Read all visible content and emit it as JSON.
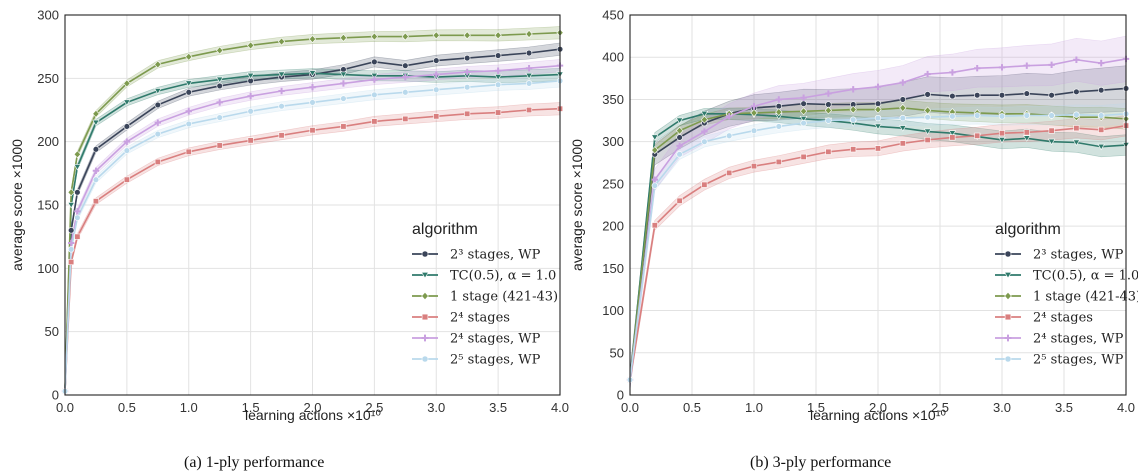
{
  "chart_data": [
    {
      "type": "line",
      "caption": "(a) 1-ply performance",
      "xlabel": "learning actions ×10¹⁰",
      "ylabel": "average score ×1000",
      "xlim": [
        0,
        4.0
      ],
      "ylim": [
        0,
        300
      ],
      "xticks": [
        "0.0",
        "0.5",
        "1.0",
        "1.5",
        "2.0",
        "2.5",
        "3.0",
        "3.5",
        "4.0"
      ],
      "yticks": [
        "0",
        "50",
        "100",
        "150",
        "200",
        "250",
        "300"
      ],
      "grid": true,
      "legend_title": "algorithm",
      "legend_placement": "lower-right",
      "series": [
        {
          "name": "2³ stages, WP",
          "color": "#3a4459",
          "marker": "circle",
          "x": [
            0,
            0.05,
            0.1,
            0.25,
            0.5,
            0.75,
            1.0,
            1.25,
            1.5,
            1.75,
            2.0,
            2.25,
            2.5,
            2.75,
            3.0,
            3.25,
            3.5,
            3.75,
            4.0
          ],
          "y": [
            3,
            130,
            160,
            194,
            212,
            229,
            239,
            244,
            248,
            251,
            253,
            257,
            263,
            260,
            264,
            266,
            268,
            270,
            273
          ]
        },
        {
          "name": "TC(0.5), α = 1.0",
          "color": "#2f7a6b",
          "marker": "triangle-down",
          "x": [
            0,
            0.05,
            0.1,
            0.25,
            0.5,
            0.75,
            1.0,
            1.25,
            1.5,
            1.75,
            2.0,
            2.25,
            2.5,
            2.75,
            3.0,
            3.25,
            3.5,
            3.75,
            4.0
          ],
          "y": [
            3,
            150,
            180,
            215,
            231,
            240,
            246,
            249,
            252,
            253,
            254,
            253,
            252,
            252,
            251,
            252,
            251,
            252,
            253
          ]
        },
        {
          "name": "1 stage (421-43)",
          "color": "#7d9a4e",
          "marker": "diamond",
          "x": [
            0,
            0.05,
            0.1,
            0.25,
            0.5,
            0.75,
            1.0,
            1.25,
            1.5,
            1.75,
            2.0,
            2.25,
            2.5,
            2.75,
            3.0,
            3.25,
            3.5,
            3.75,
            4.0
          ],
          "y": [
            3,
            160,
            190,
            222,
            246,
            261,
            267,
            272,
            276,
            279,
            281,
            282,
            283,
            283,
            284,
            284,
            284,
            285,
            286
          ]
        },
        {
          "name": "2⁴ stages",
          "color": "#d97f7f",
          "marker": "square",
          "x": [
            0,
            0.05,
            0.1,
            0.25,
            0.5,
            0.75,
            1.0,
            1.25,
            1.5,
            1.75,
            2.0,
            2.25,
            2.5,
            2.75,
            3.0,
            3.25,
            3.5,
            3.75,
            4.0
          ],
          "y": [
            3,
            105,
            125,
            153,
            170,
            184,
            192,
            197,
            201,
            205,
            209,
            212,
            216,
            218,
            220,
            222,
            223,
            225,
            226
          ]
        },
        {
          "name": "2⁴ stages, WP",
          "color": "#c9a0e0",
          "marker": "plus",
          "x": [
            0,
            0.05,
            0.1,
            0.25,
            0.5,
            0.75,
            1.0,
            1.25,
            1.5,
            1.75,
            2.0,
            2.25,
            2.5,
            2.75,
            3.0,
            3.25,
            3.5,
            3.75,
            4.0
          ],
          "y": [
            3,
            120,
            145,
            177,
            200,
            215,
            224,
            231,
            236,
            240,
            243,
            246,
            249,
            251,
            253,
            255,
            256,
            258,
            260
          ]
        },
        {
          "name": "2⁵ stages, WP",
          "color": "#b9d9ec",
          "marker": "circle",
          "x": [
            0,
            0.05,
            0.1,
            0.25,
            0.5,
            0.75,
            1.0,
            1.25,
            1.5,
            1.75,
            2.0,
            2.25,
            2.5,
            2.75,
            3.0,
            3.25,
            3.5,
            3.75,
            4.0
          ],
          "y": [
            3,
            115,
            140,
            170,
            193,
            206,
            214,
            219,
            224,
            228,
            231,
            234,
            237,
            239,
            241,
            243,
            245,
            246,
            248
          ]
        }
      ]
    },
    {
      "type": "line",
      "caption": "(b) 3-ply performance",
      "xlabel": "learning actions ×10¹⁰",
      "ylabel": "average score ×1000",
      "xlim": [
        0,
        4.0
      ],
      "ylim": [
        0,
        450
      ],
      "xticks": [
        "0.0",
        "0.5",
        "1.0",
        "1.5",
        "2.0",
        "2.5",
        "3.0",
        "3.5",
        "4.0"
      ],
      "yticks": [
        "0",
        "50",
        "100",
        "150",
        "200",
        "250",
        "300",
        "350",
        "400",
        "450"
      ],
      "grid": true,
      "legend_title": "algorithm",
      "legend_placement": "lower-right",
      "series": [
        {
          "name": "2³ stages, WP",
          "color": "#3a4459",
          "marker": "circle",
          "x": [
            0,
            0.2,
            0.4,
            0.6,
            0.8,
            1.0,
            1.2,
            1.4,
            1.6,
            1.8,
            2.0,
            2.2,
            2.4,
            2.6,
            2.8,
            3.0,
            3.2,
            3.4,
            3.6,
            3.8,
            4.0
          ],
          "y": [
            18,
            285,
            305,
            322,
            333,
            340,
            342,
            345,
            344,
            344,
            345,
            350,
            356,
            354,
            355,
            355,
            357,
            355,
            359,
            361,
            363
          ]
        },
        {
          "name": "TC(0.5), α = 1.0",
          "color": "#2f7a6b",
          "marker": "triangle-down",
          "x": [
            0,
            0.2,
            0.4,
            0.6,
            0.8,
            1.0,
            1.2,
            1.4,
            1.6,
            1.8,
            2.0,
            2.2,
            2.4,
            2.6,
            2.8,
            3.0,
            3.2,
            3.4,
            3.6,
            3.8,
            4.0
          ],
          "y": [
            18,
            305,
            325,
            333,
            333,
            332,
            330,
            327,
            325,
            322,
            318,
            316,
            312,
            310,
            306,
            302,
            304,
            300,
            299,
            294,
            296
          ]
        },
        {
          "name": "1 stage (421-43)",
          "color": "#7d9a4e",
          "marker": "diamond",
          "x": [
            0,
            0.2,
            0.4,
            0.6,
            0.8,
            1.0,
            1.2,
            1.4,
            1.6,
            1.8,
            2.0,
            2.2,
            2.4,
            2.6,
            2.8,
            3.0,
            3.2,
            3.4,
            3.6,
            3.8,
            4.0
          ],
          "y": [
            18,
            290,
            313,
            326,
            333,
            334,
            335,
            336,
            337,
            338,
            338,
            340,
            337,
            335,
            334,
            333,
            333,
            331,
            329,
            329,
            327
          ]
        },
        {
          "name": "2⁴ stages",
          "color": "#d97f7f",
          "marker": "square",
          "x": [
            0,
            0.2,
            0.4,
            0.6,
            0.8,
            1.0,
            1.2,
            1.4,
            1.6,
            1.8,
            2.0,
            2.2,
            2.4,
            2.6,
            2.8,
            3.0,
            3.2,
            3.4,
            3.6,
            3.8,
            4.0
          ],
          "y": [
            18,
            201,
            230,
            249,
            263,
            271,
            276,
            282,
            288,
            291,
            292,
            298,
            302,
            305,
            307,
            310,
            311,
            313,
            316,
            314,
            319
          ]
        },
        {
          "name": "2⁴ stages, WP",
          "color": "#c9a0e0",
          "marker": "plus",
          "x": [
            0,
            0.2,
            0.4,
            0.6,
            0.8,
            1.0,
            1.2,
            1.4,
            1.6,
            1.8,
            2.0,
            2.2,
            2.4,
            2.6,
            2.8,
            3.0,
            3.2,
            3.4,
            3.6,
            3.8,
            4.0
          ],
          "y": [
            18,
            255,
            295,
            312,
            330,
            342,
            350,
            352,
            357,
            362,
            365,
            370,
            380,
            382,
            387,
            388,
            390,
            391,
            397,
            393,
            398
          ]
        },
        {
          "name": "2⁵ stages, WP",
          "color": "#b9d9ec",
          "marker": "circle",
          "x": [
            0,
            0.2,
            0.4,
            0.6,
            0.8,
            1.0,
            1.2,
            1.4,
            1.6,
            1.8,
            2.0,
            2.2,
            2.4,
            2.6,
            2.8,
            3.0,
            3.2,
            3.4,
            3.6,
            3.8,
            4.0
          ],
          "y": [
            18,
            248,
            285,
            300,
            307,
            313,
            318,
            322,
            325,
            326,
            328,
            328,
            329,
            330,
            331,
            330,
            331,
            331,
            332,
            331,
            333
          ]
        }
      ]
    }
  ]
}
